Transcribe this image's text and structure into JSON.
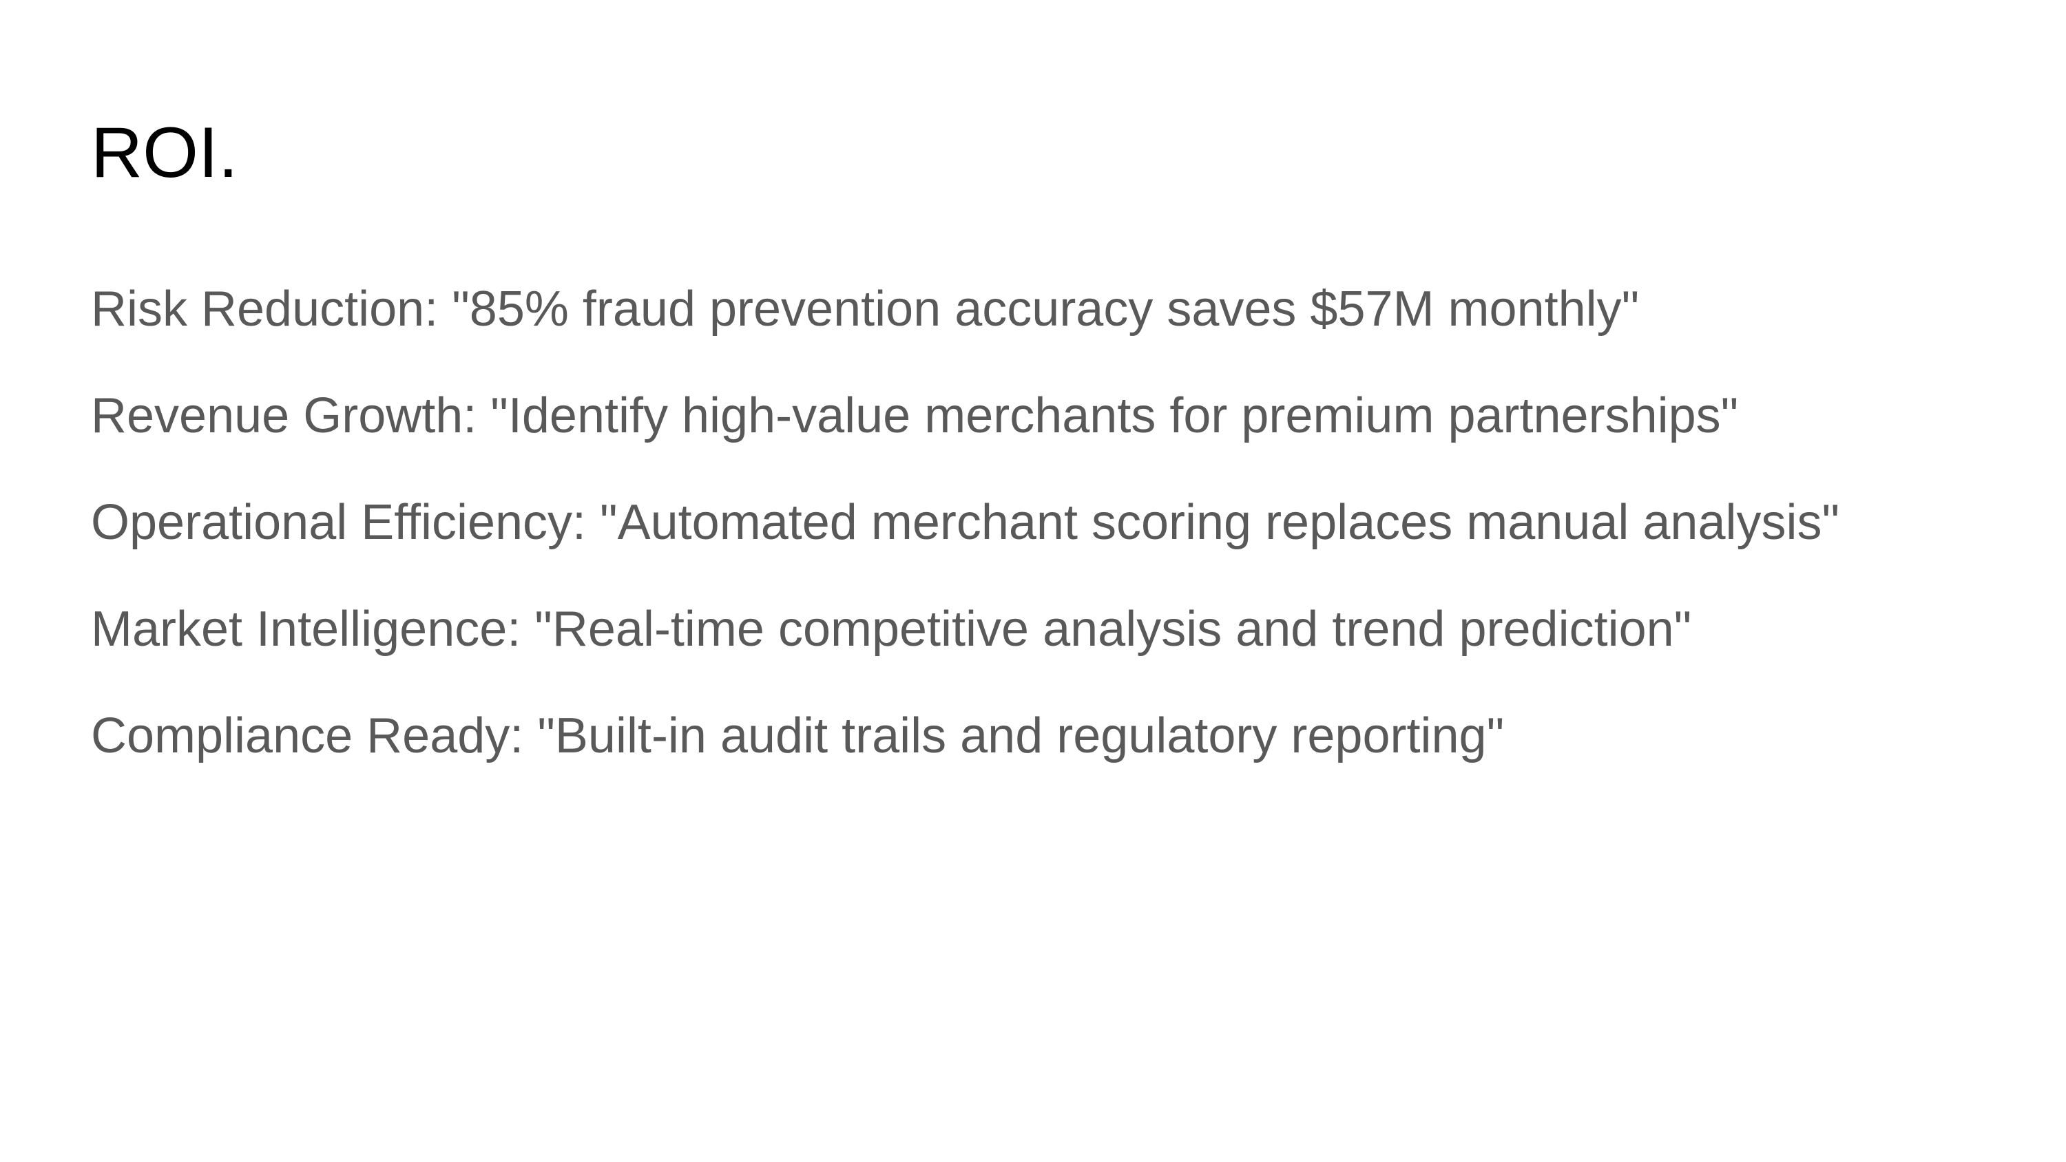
{
  "slide": {
    "title": "ROI.",
    "points": [
      "Risk Reduction: \"85% fraud prevention accuracy saves $57M monthly\"",
      "Revenue Growth: \"Identify high-value merchants for premium partnerships\"",
      "Operational Efficiency: \"Automated merchant scoring replaces manual analysis\"",
      "Market Intelligence: \"Real-time competitive analysis and trend prediction\"",
      "Compliance Ready: \"Built-in audit trails and regulatory reporting\""
    ]
  },
  "colors": {
    "title": "#000000",
    "body": "#595959",
    "background": "#ffffff"
  }
}
